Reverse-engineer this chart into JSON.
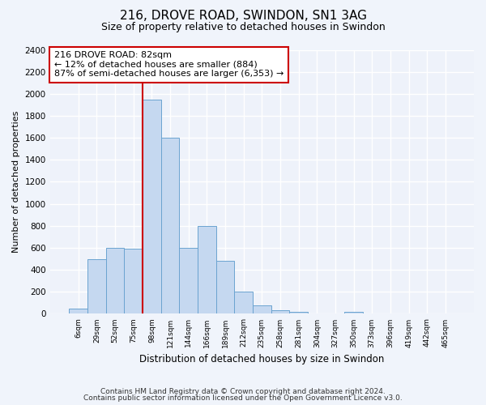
{
  "title": "216, DROVE ROAD, SWINDON, SN1 3AG",
  "subtitle": "Size of property relative to detached houses in Swindon",
  "xlabel": "Distribution of detached houses by size in Swindon",
  "ylabel": "Number of detached properties",
  "categories": [
    "6sqm",
    "29sqm",
    "52sqm",
    "75sqm",
    "98sqm",
    "121sqm",
    "144sqm",
    "166sqm",
    "189sqm",
    "212sqm",
    "235sqm",
    "258sqm",
    "281sqm",
    "304sqm",
    "327sqm",
    "350sqm",
    "373sqm",
    "396sqm",
    "419sqm",
    "442sqm",
    "465sqm"
  ],
  "values": [
    50,
    500,
    600,
    590,
    1950,
    1600,
    600,
    800,
    480,
    200,
    80,
    30,
    20,
    0,
    0,
    20,
    0,
    0,
    0,
    0,
    0
  ],
  "bar_color": "#c5d8f0",
  "bar_edgecolor": "#6ba3d0",
  "ylim": [
    0,
    2400
  ],
  "yticks": [
    0,
    200,
    400,
    600,
    800,
    1000,
    1200,
    1400,
    1600,
    1800,
    2000,
    2200,
    2400
  ],
  "vline_x": 3.5,
  "vline_color": "#cc0000",
  "annotation_title": "216 DROVE ROAD: 82sqm",
  "annotation_line1": "← 12% of detached houses are smaller (884)",
  "annotation_line2": "87% of semi-detached houses are larger (6,353) →",
  "footer1": "Contains HM Land Registry data © Crown copyright and database right 2024.",
  "footer2": "Contains public sector information licensed under the Open Government Licence v3.0.",
  "bg_color": "#f0f4fb",
  "plot_bg_color": "#eef2fa"
}
